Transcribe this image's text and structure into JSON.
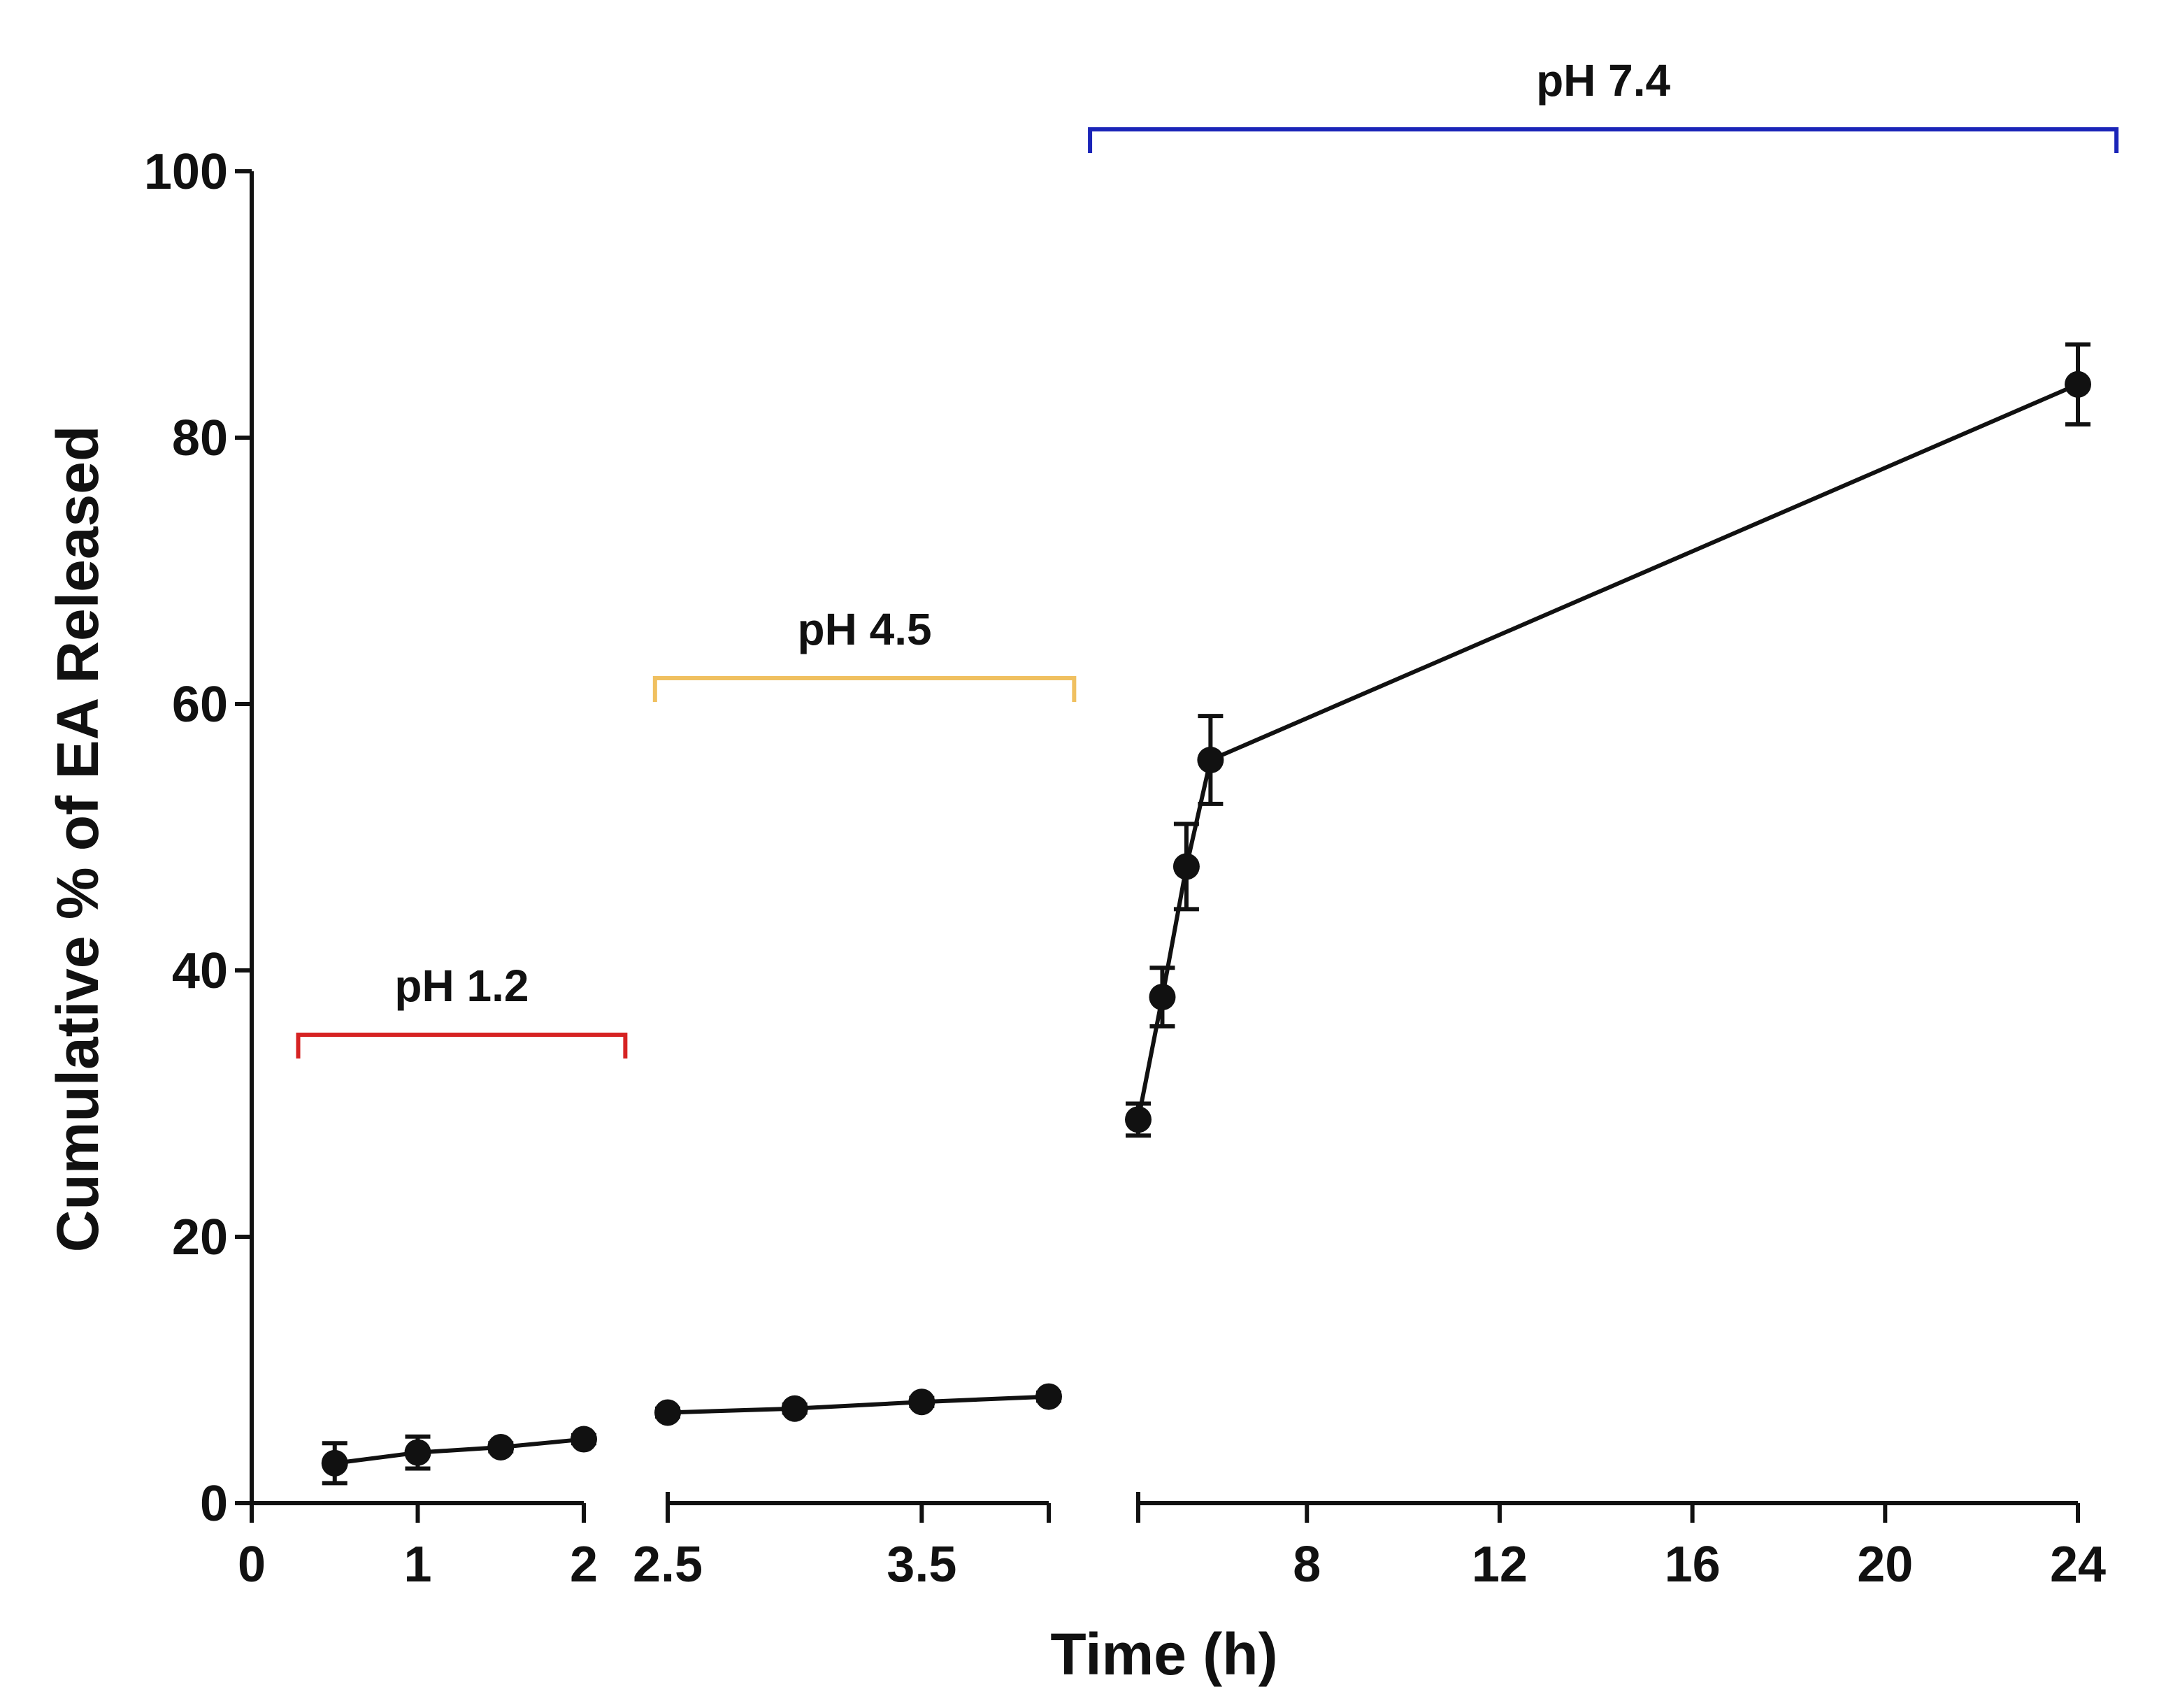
{
  "chart_data": {
    "type": "line",
    "title": "",
    "xlabel": "Time (h)",
    "ylabel": "Cumulative % of EA Released",
    "ylim": [
      0,
      100
    ],
    "yticks": [
      0,
      20,
      40,
      60,
      80,
      100
    ],
    "segments": [
      {
        "name": "pH 1.2",
        "color": "#d62222",
        "xlim": [
          0,
          2
        ],
        "xticks": [
          0,
          1,
          2
        ],
        "tick_labels": [
          "0",
          "1",
          "2"
        ],
        "bracket_x": [
          0.28,
          2.25
        ],
        "points": [
          {
            "x": 0.5,
            "y": 3.0,
            "err": 1.5
          },
          {
            "x": 1.0,
            "y": 3.8,
            "err": 1.2
          },
          {
            "x": 1.5,
            "y": 4.2,
            "err": 0.3
          },
          {
            "x": 2.0,
            "y": 4.8,
            "err": 0.3
          }
        ]
      },
      {
        "name": "pH 4.5",
        "color": "#f0c060",
        "xlim": [
          2.5,
          4.0
        ],
        "xticks": [
          2.5,
          3.5,
          4.0
        ],
        "tick_labels": [
          "2.5",
          "3.5",
          ""
        ],
        "bracket_x": [
          2.45,
          4.1
        ],
        "points": [
          {
            "x": 2.5,
            "y": 6.8,
            "err": 0.3
          },
          {
            "x": 3.0,
            "y": 7.1,
            "err": 0.3
          },
          {
            "x": 3.5,
            "y": 7.6,
            "err": 0.3
          },
          {
            "x": 4.0,
            "y": 8.0,
            "err": 0.3
          }
        ]
      },
      {
        "name": "pH 7.4",
        "color": "#1a24b8",
        "xlim": [
          4.5,
          24
        ],
        "xticks": [
          4.5,
          8,
          12,
          16,
          20,
          24
        ],
        "tick_labels": [
          "",
          "8",
          "12",
          "16",
          "20",
          "24"
        ],
        "bracket_x": [
          3.5,
          24.8
        ],
        "points": [
          {
            "x": 4.5,
            "y": 28.8,
            "err": 1.2
          },
          {
            "x": 5.0,
            "y": 38.0,
            "err": 2.2
          },
          {
            "x": 5.5,
            "y": 47.8,
            "err": 3.2
          },
          {
            "x": 6.0,
            "y": 55.8,
            "err": 3.3
          },
          {
            "x": 24.0,
            "y": 84.0,
            "err": 3.0
          }
        ]
      }
    ]
  }
}
